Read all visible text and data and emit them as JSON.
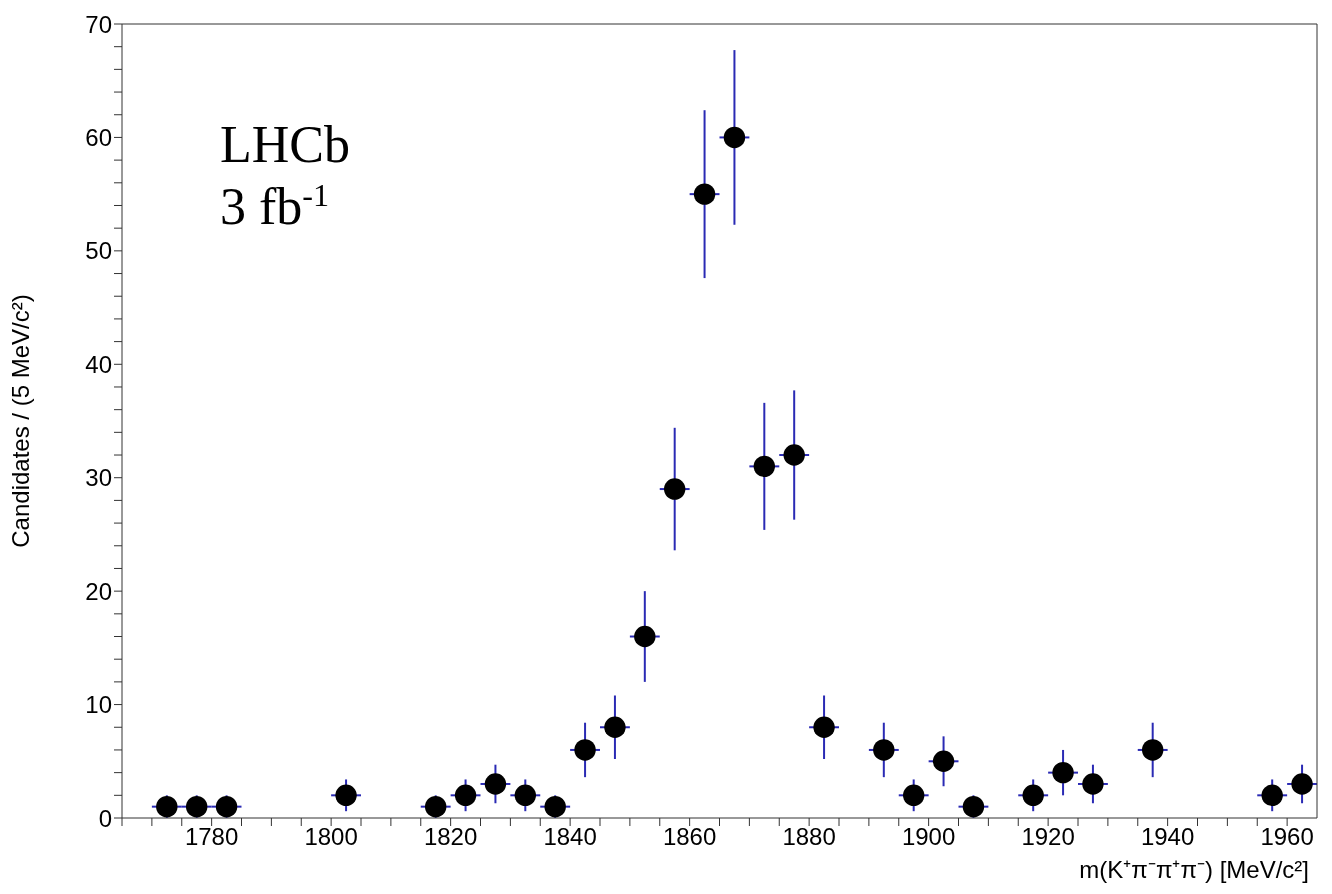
{
  "chart_data": {
    "type": "scatter",
    "xlabel": "m(K⁺π⁻π⁺π⁻) [MeV/c²]",
    "ylabel": "Candidates / (5 MeV/c²)",
    "annotations": [
      "LHCb",
      "3 fb$^{-1}$"
    ],
    "x": [
      1772.5,
      1777.5,
      1782.5,
      1802.5,
      1817.5,
      1822.5,
      1827.5,
      1832.5,
      1837.5,
      1842.5,
      1847.5,
      1852.5,
      1857.5,
      1862.5,
      1867.5,
      1872.5,
      1877.5,
      1882.5,
      1892.5,
      1897.5,
      1902.5,
      1907.5,
      1917.5,
      1922.5,
      1927.5,
      1937.5,
      1957.5,
      1962.5
    ],
    "series": [
      {
        "color": "#000000",
        "values": [
          1,
          1,
          1,
          2,
          1,
          2,
          3,
          2,
          1,
          6,
          8,
          16,
          29,
          55,
          60,
          31,
          32,
          8,
          6,
          2,
          5,
          1,
          2,
          4,
          3,
          6,
          2,
          3
        ],
        "errors": [
          1,
          1,
          1,
          1.4,
          1,
          1.4,
          1.7,
          1.4,
          1,
          2.4,
          2.8,
          4,
          5.4,
          7.4,
          7.7,
          5.6,
          5.7,
          2.8,
          2.4,
          1.4,
          2.2,
          1,
          1.4,
          2,
          1.7,
          2.4,
          1.4,
          1.7
        ],
        "xerrors": [
          2.5,
          2.5,
          2.5,
          2.5,
          2.5,
          2.5,
          2.5,
          2.5,
          2.5,
          2.5,
          2.5,
          2.5,
          2.5,
          2.5,
          2.5,
          2.5,
          2.5,
          2.5,
          2.5,
          2.5,
          2.5,
          2.5,
          2.5,
          2.5,
          2.5,
          2.5,
          2.5,
          2.5
        ]
      }
    ],
    "marker": "circle",
    "xlim": [
      1765,
      1965
    ],
    "xticks": [
      {
        "value": 1765,
        "label": null
      },
      {
        "value": 1770,
        "label": null
      },
      {
        "value": 1775,
        "label": null
      },
      1780,
      {
        "value": 1785,
        "label": null
      },
      {
        "value": 1790,
        "label": null
      },
      {
        "value": 1795,
        "label": null
      },
      1800,
      {
        "value": 1805,
        "label": null
      },
      {
        "value": 1810,
        "label": null
      },
      {
        "value": 1815,
        "label": null
      },
      1820,
      {
        "value": 1825,
        "label": null
      },
      {
        "value": 1830,
        "label": null
      },
      {
        "value": 1835,
        "label": null
      },
      1840,
      {
        "value": 1845,
        "label": null
      },
      {
        "value": 1850,
        "label": null
      },
      {
        "value": 1855,
        "label": null
      },
      1860,
      {
        "value": 1865,
        "label": null
      },
      {
        "value": 1870,
        "label": null
      },
      {
        "value": 1875,
        "label": null
      },
      1880,
      {
        "value": 1885,
        "label": null
      },
      {
        "value": 1890,
        "label": null
      },
      {
        "value": 1895,
        "label": null
      },
      1900,
      {
        "value": 1905,
        "label": null
      },
      {
        "value": 1910,
        "label": null
      },
      {
        "value": 1915,
        "label": null
      },
      1920,
      {
        "value": 1925,
        "label": null
      },
      {
        "value": 1930,
        "label": null
      },
      {
        "value": 1935,
        "label": null
      },
      1940,
      {
        "value": 1945,
        "label": null
      },
      {
        "value": 1950,
        "label": null
      },
      {
        "value": 1955,
        "label": null
      },
      1960
    ],
    "ylim": [
      0,
      70
    ],
    "yticks": [
      0,
      {
        "value": 2,
        "label": null
      },
      {
        "value": 4,
        "label": null
      },
      {
        "value": 6,
        "label": null
      },
      {
        "value": 8,
        "label": null
      },
      10,
      {
        "value": 12,
        "label": null
      },
      {
        "value": 14,
        "label": null
      },
      {
        "value": 16,
        "label": null
      },
      {
        "value": 18,
        "label": null
      },
      20,
      {
        "value": 22,
        "label": null
      },
      {
        "value": 24,
        "label": null
      },
      {
        "value": 26,
        "label": null
      },
      {
        "value": 28,
        "label": null
      },
      30,
      {
        "value": 32,
        "label": null
      },
      {
        "value": 34,
        "label": null
      },
      {
        "value": 36,
        "label": null
      },
      {
        "value": 38,
        "label": null
      },
      40,
      {
        "value": 42,
        "label": null
      },
      {
        "value": 44,
        "label": null
      },
      {
        "value": 46,
        "label": null
      },
      {
        "value": 48,
        "label": null
      },
      50,
      {
        "value": 52,
        "label": null
      },
      {
        "value": 54,
        "label": null
      },
      {
        "value": 56,
        "label": null
      },
      {
        "value": 58,
        "label": null
      },
      60,
      {
        "value": 62,
        "label": null
      },
      {
        "value": 64,
        "label": null
      },
      {
        "value": 66,
        "label": null
      },
      {
        "value": 68,
        "label": null
      },
      70
    ]
  }
}
